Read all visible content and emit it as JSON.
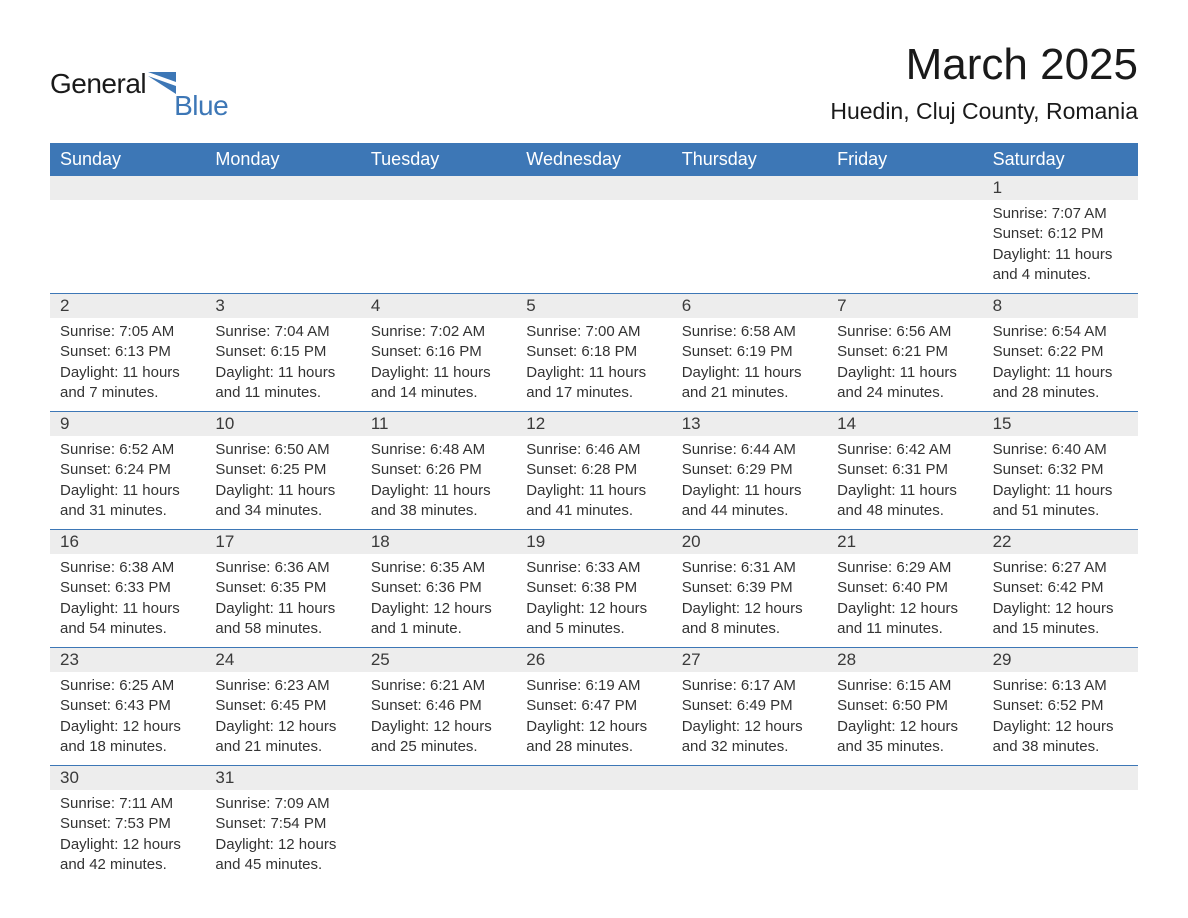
{
  "logo": {
    "word1": "General",
    "word2": "Blue",
    "accent_color": "#3d77b6"
  },
  "header": {
    "month_title": "March 2025",
    "location": "Huedin, Cluj County, Romania"
  },
  "calendar": {
    "type": "month-grid",
    "columns": 7,
    "header_bg": "#3d77b6",
    "header_fg": "#ffffff",
    "daynum_bg": "#ededed",
    "row_border_color": "#3d77b6",
    "text_color": "#333333",
    "fontsize_weekday": 18,
    "fontsize_daynum": 17,
    "fontsize_body": 15,
    "weekdays": [
      "Sunday",
      "Monday",
      "Tuesday",
      "Wednesday",
      "Thursday",
      "Friday",
      "Saturday"
    ],
    "first_weekday_index_of_day1": 6,
    "days": [
      {
        "n": 1,
        "sunrise": "7:07 AM",
        "sunset": "6:12 PM",
        "daylight": "11 hours and 4 minutes."
      },
      {
        "n": 2,
        "sunrise": "7:05 AM",
        "sunset": "6:13 PM",
        "daylight": "11 hours and 7 minutes."
      },
      {
        "n": 3,
        "sunrise": "7:04 AM",
        "sunset": "6:15 PM",
        "daylight": "11 hours and 11 minutes."
      },
      {
        "n": 4,
        "sunrise": "7:02 AM",
        "sunset": "6:16 PM",
        "daylight": "11 hours and 14 minutes."
      },
      {
        "n": 5,
        "sunrise": "7:00 AM",
        "sunset": "6:18 PM",
        "daylight": "11 hours and 17 minutes."
      },
      {
        "n": 6,
        "sunrise": "6:58 AM",
        "sunset": "6:19 PM",
        "daylight": "11 hours and 21 minutes."
      },
      {
        "n": 7,
        "sunrise": "6:56 AM",
        "sunset": "6:21 PM",
        "daylight": "11 hours and 24 minutes."
      },
      {
        "n": 8,
        "sunrise": "6:54 AM",
        "sunset": "6:22 PM",
        "daylight": "11 hours and 28 minutes."
      },
      {
        "n": 9,
        "sunrise": "6:52 AM",
        "sunset": "6:24 PM",
        "daylight": "11 hours and 31 minutes."
      },
      {
        "n": 10,
        "sunrise": "6:50 AM",
        "sunset": "6:25 PM",
        "daylight": "11 hours and 34 minutes."
      },
      {
        "n": 11,
        "sunrise": "6:48 AM",
        "sunset": "6:26 PM",
        "daylight": "11 hours and 38 minutes."
      },
      {
        "n": 12,
        "sunrise": "6:46 AM",
        "sunset": "6:28 PM",
        "daylight": "11 hours and 41 minutes."
      },
      {
        "n": 13,
        "sunrise": "6:44 AM",
        "sunset": "6:29 PM",
        "daylight": "11 hours and 44 minutes."
      },
      {
        "n": 14,
        "sunrise": "6:42 AM",
        "sunset": "6:31 PM",
        "daylight": "11 hours and 48 minutes."
      },
      {
        "n": 15,
        "sunrise": "6:40 AM",
        "sunset": "6:32 PM",
        "daylight": "11 hours and 51 minutes."
      },
      {
        "n": 16,
        "sunrise": "6:38 AM",
        "sunset": "6:33 PM",
        "daylight": "11 hours and 54 minutes."
      },
      {
        "n": 17,
        "sunrise": "6:36 AM",
        "sunset": "6:35 PM",
        "daylight": "11 hours and 58 minutes."
      },
      {
        "n": 18,
        "sunrise": "6:35 AM",
        "sunset": "6:36 PM",
        "daylight": "12 hours and 1 minute."
      },
      {
        "n": 19,
        "sunrise": "6:33 AM",
        "sunset": "6:38 PM",
        "daylight": "12 hours and 5 minutes."
      },
      {
        "n": 20,
        "sunrise": "6:31 AM",
        "sunset": "6:39 PM",
        "daylight": "12 hours and 8 minutes."
      },
      {
        "n": 21,
        "sunrise": "6:29 AM",
        "sunset": "6:40 PM",
        "daylight": "12 hours and 11 minutes."
      },
      {
        "n": 22,
        "sunrise": "6:27 AM",
        "sunset": "6:42 PM",
        "daylight": "12 hours and 15 minutes."
      },
      {
        "n": 23,
        "sunrise": "6:25 AM",
        "sunset": "6:43 PM",
        "daylight": "12 hours and 18 minutes."
      },
      {
        "n": 24,
        "sunrise": "6:23 AM",
        "sunset": "6:45 PM",
        "daylight": "12 hours and 21 minutes."
      },
      {
        "n": 25,
        "sunrise": "6:21 AM",
        "sunset": "6:46 PM",
        "daylight": "12 hours and 25 minutes."
      },
      {
        "n": 26,
        "sunrise": "6:19 AM",
        "sunset": "6:47 PM",
        "daylight": "12 hours and 28 minutes."
      },
      {
        "n": 27,
        "sunrise": "6:17 AM",
        "sunset": "6:49 PM",
        "daylight": "12 hours and 32 minutes."
      },
      {
        "n": 28,
        "sunrise": "6:15 AM",
        "sunset": "6:50 PM",
        "daylight": "12 hours and 35 minutes."
      },
      {
        "n": 29,
        "sunrise": "6:13 AM",
        "sunset": "6:52 PM",
        "daylight": "12 hours and 38 minutes."
      },
      {
        "n": 30,
        "sunrise": "7:11 AM",
        "sunset": "7:53 PM",
        "daylight": "12 hours and 42 minutes."
      },
      {
        "n": 31,
        "sunrise": "7:09 AM",
        "sunset": "7:54 PM",
        "daylight": "12 hours and 45 minutes."
      }
    ],
    "labels": {
      "sunrise": "Sunrise:",
      "sunset": "Sunset:",
      "daylight": "Daylight:"
    }
  }
}
